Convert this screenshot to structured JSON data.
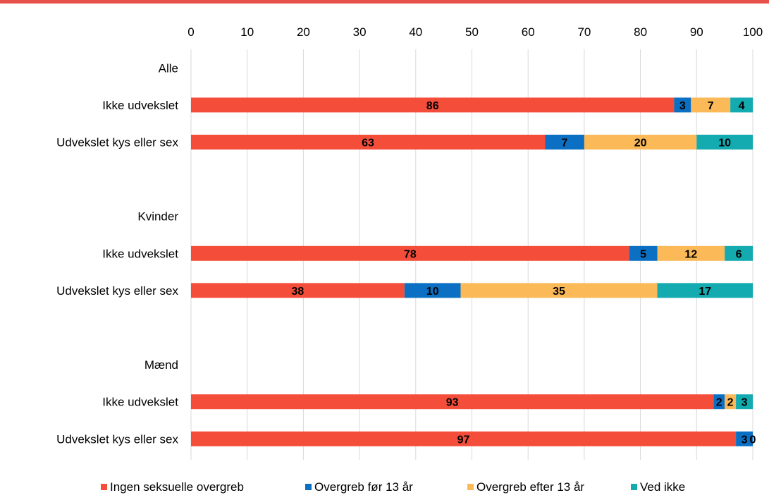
{
  "colors": {
    "top_rule": "#e8504a",
    "grid": "#d9d9d9"
  },
  "chart_data": {
    "type": "bar",
    "orientation": "horizontal",
    "stacked": true,
    "xlim": [
      0,
      100
    ],
    "x_ticks": [
      "0",
      "10",
      "20",
      "30",
      "40",
      "50",
      "60",
      "70",
      "80",
      "90",
      "100"
    ],
    "grid": true,
    "legend_position": "bottom",
    "categories": [
      "Alle",
      "Ikke udvekslet",
      "Udvekslet kys eller sex",
      "",
      "Kvinder",
      "Ikke udvekslet",
      "Udvekslet kys eller sex",
      "",
      "Mænd",
      "Ikke udvekslet",
      "Udvekslet kys eller sex"
    ],
    "series": [
      {
        "name": "Ingen seksuelle overgreb",
        "color": "#f44e3b",
        "values": [
          null,
          86,
          63,
          null,
          null,
          78,
          38,
          null,
          null,
          93,
          97
        ]
      },
      {
        "name": "Overgreb før 13 år",
        "color": "#0b70c4",
        "values": [
          null,
          3,
          7,
          null,
          null,
          5,
          10,
          null,
          null,
          2,
          3
        ]
      },
      {
        "name": "Overgreb efter 13 år",
        "color": "#fbb957",
        "values": [
          null,
          7,
          20,
          null,
          null,
          12,
          35,
          null,
          null,
          2,
          0
        ]
      },
      {
        "name": "Ved ikke",
        "color": "#13aab0",
        "values": [
          null,
          4,
          10,
          null,
          null,
          6,
          17,
          null,
          null,
          3,
          0
        ]
      }
    ]
  }
}
